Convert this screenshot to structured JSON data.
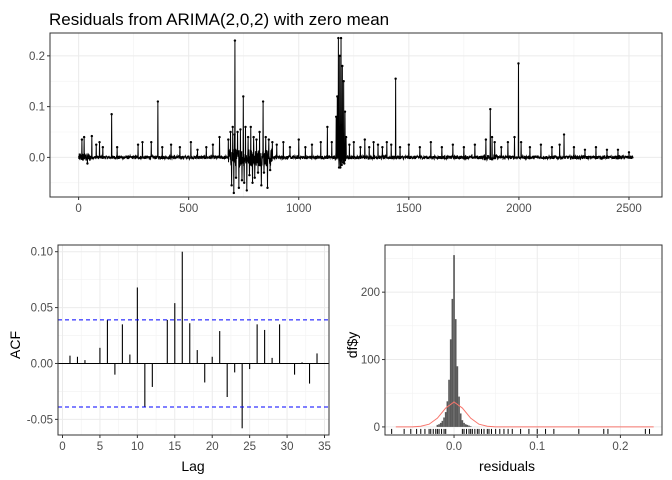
{
  "chart_data": [
    {
      "type": "line",
      "title": "Residuals from ARIMA(2,0,2) with zero mean",
      "xlabel": "",
      "ylabel": "",
      "xlim": [
        -130,
        2650
      ],
      "ylim": [
        -0.078,
        0.245
      ],
      "x_ticks": [
        0,
        500,
        1000,
        1500,
        2000,
        2500
      ],
      "x_tick_labels": [
        "0",
        "500",
        "1000",
        "1500",
        "2000",
        "2500"
      ],
      "y_ticks": [
        0,
        0.1,
        0.2
      ],
      "y_tick_labels": [
        "0.0",
        "0.1",
        "0.2"
      ],
      "grid": true,
      "n_obs": 2520,
      "spikes": [
        {
          "x": 15,
          "y": 0.035
        },
        {
          "x": 25,
          "y": 0.04
        },
        {
          "x": 40,
          "y": -0.012
        },
        {
          "x": 60,
          "y": 0.042
        },
        {
          "x": 80,
          "y": 0.025
        },
        {
          "x": 95,
          "y": 0.03
        },
        {
          "x": 110,
          "y": 0.02
        },
        {
          "x": 150,
          "y": 0.085
        },
        {
          "x": 175,
          "y": 0.02
        },
        {
          "x": 270,
          "y": 0.025
        },
        {
          "x": 290,
          "y": 0.03
        },
        {
          "x": 330,
          "y": 0.03
        },
        {
          "x": 360,
          "y": 0.11
        },
        {
          "x": 380,
          "y": 0.02
        },
        {
          "x": 420,
          "y": 0.025
        },
        {
          "x": 460,
          "y": 0.02
        },
        {
          "x": 510,
          "y": 0.03
        },
        {
          "x": 540,
          "y": 0.015
        },
        {
          "x": 580,
          "y": 0.02
        },
        {
          "x": 610,
          "y": 0.025
        },
        {
          "x": 640,
          "y": 0.04
        },
        {
          "x": 680,
          "y": 0.035
        },
        {
          "x": 690,
          "y": 0.05
        },
        {
          "x": 695,
          "y": -0.055
        },
        {
          "x": 700,
          "y": 0.06
        },
        {
          "x": 705,
          "y": -0.07
        },
        {
          "x": 708,
          "y": 0.045
        },
        {
          "x": 710,
          "y": 0.23
        },
        {
          "x": 715,
          "y": -0.04
        },
        {
          "x": 722,
          "y": 0.05
        },
        {
          "x": 728,
          "y": -0.06
        },
        {
          "x": 735,
          "y": 0.055
        },
        {
          "x": 742,
          "y": -0.045
        },
        {
          "x": 748,
          "y": 0.12
        },
        {
          "x": 752,
          "y": -0.05
        },
        {
          "x": 758,
          "y": 0.06
        },
        {
          "x": 764,
          "y": -0.065
        },
        {
          "x": 770,
          "y": 0.04
        },
        {
          "x": 776,
          "y": -0.035
        },
        {
          "x": 782,
          "y": 0.06
        },
        {
          "x": 790,
          "y": -0.05
        },
        {
          "x": 795,
          "y": 0.04
        },
        {
          "x": 800,
          "y": -0.04
        },
        {
          "x": 808,
          "y": 0.035
        },
        {
          "x": 815,
          "y": -0.03
        },
        {
          "x": 822,
          "y": 0.05
        },
        {
          "x": 830,
          "y": -0.055
        },
        {
          "x": 838,
          "y": 0.11
        },
        {
          "x": 842,
          "y": -0.03
        },
        {
          "x": 850,
          "y": 0.04
        },
        {
          "x": 858,
          "y": -0.06
        },
        {
          "x": 864,
          "y": 0.035
        },
        {
          "x": 870,
          "y": -0.025
        },
        {
          "x": 880,
          "y": 0.03
        },
        {
          "x": 900,
          "y": 0.025
        },
        {
          "x": 930,
          "y": 0.03
        },
        {
          "x": 960,
          "y": 0.02
        },
        {
          "x": 1000,
          "y": 0.035
        },
        {
          "x": 1030,
          "y": 0.02
        },
        {
          "x": 1060,
          "y": 0.025
        },
        {
          "x": 1100,
          "y": 0.03
        },
        {
          "x": 1130,
          "y": 0.06
        },
        {
          "x": 1150,
          "y": 0.03
        },
        {
          "x": 1170,
          "y": 0.08
        },
        {
          "x": 1175,
          "y": 0.12
        },
        {
          "x": 1180,
          "y": 0.235
        },
        {
          "x": 1183,
          "y": -0.02
        },
        {
          "x": 1186,
          "y": 0.2
        },
        {
          "x": 1189,
          "y": -0.02
        },
        {
          "x": 1192,
          "y": 0.235
        },
        {
          "x": 1195,
          "y": -0.015
        },
        {
          "x": 1198,
          "y": 0.18
        },
        {
          "x": 1201,
          "y": -0.01
        },
        {
          "x": 1204,
          "y": 0.15
        },
        {
          "x": 1207,
          "y": -0.012
        },
        {
          "x": 1210,
          "y": 0.09
        },
        {
          "x": 1215,
          "y": 0.04
        },
        {
          "x": 1230,
          "y": 0.025
        },
        {
          "x": 1250,
          "y": 0.03
        },
        {
          "x": 1280,
          "y": 0.02
        },
        {
          "x": 1300,
          "y": 0.035
        },
        {
          "x": 1320,
          "y": 0.02
        },
        {
          "x": 1340,
          "y": 0.03
        },
        {
          "x": 1360,
          "y": 0.025
        },
        {
          "x": 1380,
          "y": 0.02
        },
        {
          "x": 1400,
          "y": 0.03
        },
        {
          "x": 1420,
          "y": 0.025
        },
        {
          "x": 1440,
          "y": 0.155
        },
        {
          "x": 1460,
          "y": 0.02
        },
        {
          "x": 1500,
          "y": 0.025
        },
        {
          "x": 1550,
          "y": 0.02
        },
        {
          "x": 1600,
          "y": 0.03
        },
        {
          "x": 1650,
          "y": 0.02
        },
        {
          "x": 1700,
          "y": 0.025
        },
        {
          "x": 1750,
          "y": 0.02
        },
        {
          "x": 1800,
          "y": 0.025
        },
        {
          "x": 1850,
          "y": 0.035
        },
        {
          "x": 1870,
          "y": 0.095
        },
        {
          "x": 1878,
          "y": 0.04
        },
        {
          "x": 1890,
          "y": 0.03
        },
        {
          "x": 1920,
          "y": 0.02
        },
        {
          "x": 1950,
          "y": 0.03
        },
        {
          "x": 1980,
          "y": 0.04
        },
        {
          "x": 1998,
          "y": 0.185
        },
        {
          "x": 2010,
          "y": 0.03
        },
        {
          "x": 2050,
          "y": 0.02
        },
        {
          "x": 2100,
          "y": 0.025
        },
        {
          "x": 2150,
          "y": 0.02
        },
        {
          "x": 2185,
          "y": 0.025
        },
        {
          "x": 2205,
          "y": 0.045
        },
        {
          "x": 2250,
          "y": 0.02
        },
        {
          "x": 2300,
          "y": 0.015
        },
        {
          "x": 2350,
          "y": 0.02
        },
        {
          "x": 2400,
          "y": 0.015
        },
        {
          "x": 2450,
          "y": 0.015
        },
        {
          "x": 2500,
          "y": 0.01
        }
      ]
    },
    {
      "type": "bar",
      "xlabel": "Lag",
      "ylabel": "ACF",
      "xlim": [
        -0.6,
        35.6
      ],
      "ylim": [
        -0.064,
        0.106
      ],
      "x_ticks": [
        0,
        5,
        10,
        15,
        20,
        25,
        30,
        35
      ],
      "x_tick_labels": [
        "0",
        "5",
        "10",
        "15",
        "20",
        "25",
        "30",
        "35"
      ],
      "y_ticks": [
        -0.05,
        0,
        0.05,
        0.1
      ],
      "y_tick_labels": [
        "-0.05",
        "0.00",
        "0.05",
        "0.10"
      ],
      "grid": true,
      "lags": [
        1,
        2,
        3,
        4,
        5,
        6,
        7,
        8,
        9,
        10,
        11,
        12,
        13,
        14,
        15,
        16,
        17,
        18,
        19,
        20,
        21,
        22,
        23,
        24,
        25,
        26,
        27,
        28,
        29,
        30,
        31,
        32,
        33,
        34
      ],
      "values": [
        0.007,
        0.006,
        0.003,
        0.0,
        0.014,
        0.039,
        -0.01,
        0.035,
        0.008,
        0.068,
        -0.039,
        -0.021,
        0.0,
        0.039,
        0.054,
        0.1,
        0.036,
        0.012,
        -0.017,
        0.006,
        0.029,
        -0.03,
        -0.008,
        -0.058,
        -0.005,
        0.035,
        0.03,
        0.005,
        0.035,
        0.0,
        -0.01,
        0.001,
        -0.018,
        0.009
      ],
      "confidence_limit": 0.039
    },
    {
      "type": "bar",
      "subtype": "histogram",
      "xlabel": "residuals",
      "ylabel": "df$y",
      "xlim": [
        -0.083,
        0.25
      ],
      "ylim": [
        -12,
        270
      ],
      "x_ticks": [
        0.0,
        0.1,
        0.2
      ],
      "x_tick_labels": [
        "0.0",
        "0.1",
        "0.2"
      ],
      "y_ticks": [
        0,
        100,
        200
      ],
      "y_tick_labels": [
        "0",
        "100",
        "200"
      ],
      "grid": true,
      "bin_centers": [
        -0.02,
        -0.018,
        -0.016,
        -0.014,
        -0.012,
        -0.01,
        -0.008,
        -0.006,
        -0.004,
        -0.002,
        0.0,
        0.002,
        0.004,
        0.006,
        0.008,
        0.01,
        0.012,
        0.014,
        0.016,
        0.018,
        0.02
      ],
      "bin_heights": [
        3,
        4,
        6,
        9,
        14,
        22,
        38,
        70,
        130,
        190,
        255,
        160,
        90,
        45,
        20,
        10,
        6,
        4,
        3,
        2,
        1
      ],
      "density_x": [
        -0.07,
        -0.05,
        -0.04,
        -0.03,
        -0.02,
        -0.01,
        0.0,
        0.01,
        0.02,
        0.03,
        0.04,
        0.05,
        0.07,
        0.1,
        0.24
      ],
      "density_y": [
        0,
        0,
        1,
        4,
        13,
        28,
        37,
        28,
        13,
        4,
        1,
        0,
        0,
        0,
        0
      ],
      "rug": [
        -0.075,
        -0.06,
        -0.052,
        -0.045,
        -0.04,
        -0.035,
        -0.03,
        -0.028,
        -0.025,
        -0.022,
        -0.02,
        -0.018,
        -0.015,
        -0.012,
        -0.01,
        0.01,
        0.012,
        0.015,
        0.018,
        0.02,
        0.022,
        0.025,
        0.028,
        0.03,
        0.033,
        0.036,
        0.04,
        0.042,
        0.045,
        0.05,
        0.055,
        0.06,
        0.065,
        0.07,
        0.08,
        0.09,
        0.1,
        0.11,
        0.12,
        0.15,
        0.18,
        0.185,
        0.23,
        0.235
      ],
      "colors": {
        "bars": "#595959",
        "density": "#f8766d",
        "rug": "#000000"
      }
    }
  ]
}
